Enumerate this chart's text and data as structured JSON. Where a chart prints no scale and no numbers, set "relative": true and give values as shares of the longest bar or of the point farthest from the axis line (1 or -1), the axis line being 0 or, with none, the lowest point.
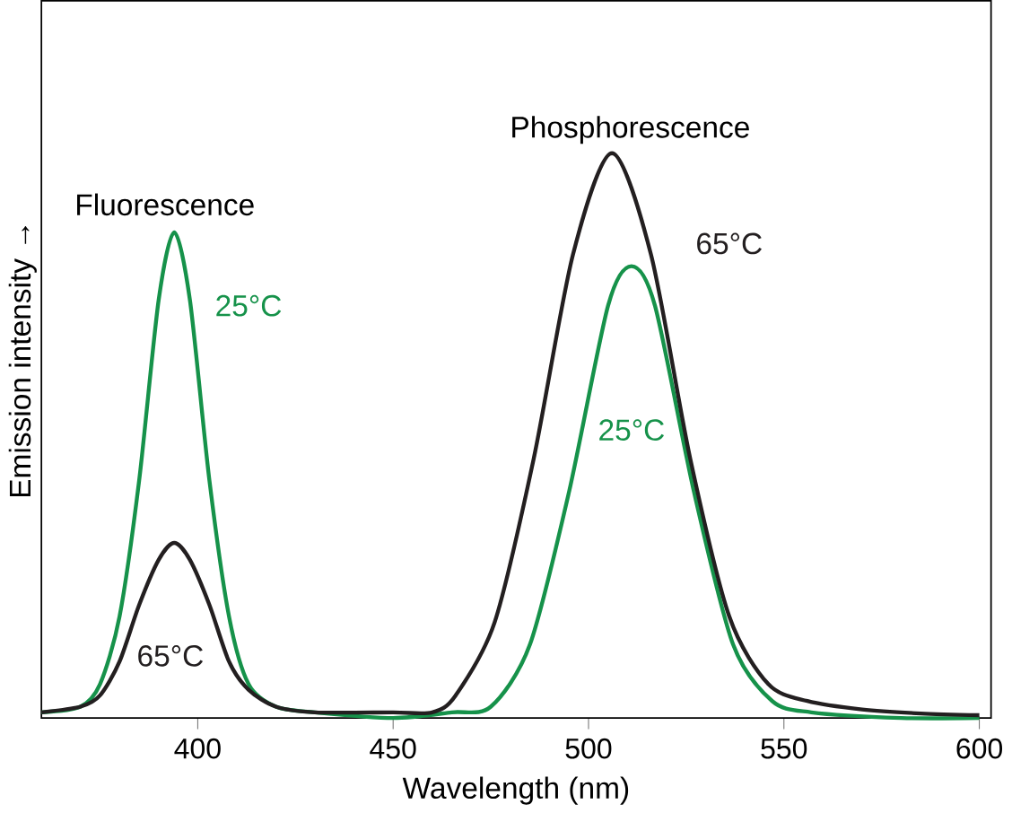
{
  "chart_data": {
    "type": "line",
    "relative": true,
    "xlabel": "Wavelength (nm)",
    "ylabel": "Emission intensity →",
    "xlim": [
      360,
      603
    ],
    "xticks": [
      400,
      450,
      500,
      550,
      600
    ],
    "grid": false,
    "marker": "none",
    "line_style": "solid",
    "annotations": [
      "Fluorescence",
      "Phosphorescence"
    ],
    "series": [
      {
        "name": "25°C",
        "color": "#16924a",
        "x": [
          360,
          370,
          375,
          380,
          385,
          390,
          394,
          398,
          403,
          408,
          413,
          420,
          430,
          450,
          465,
          475,
          485,
          495,
          505,
          511,
          517,
          527,
          537,
          547,
          557,
          580,
          600
        ],
        "values": [
          0.01,
          0.02,
          0.06,
          0.18,
          0.42,
          0.74,
          0.86,
          0.74,
          0.42,
          0.18,
          0.06,
          0.02,
          0.01,
          0.0,
          0.01,
          0.02,
          0.13,
          0.4,
          0.73,
          0.8,
          0.73,
          0.4,
          0.13,
          0.03,
          0.01,
          0.0,
          0.0
        ]
      },
      {
        "name": "65°C",
        "color": "#231f20",
        "x": [
          360,
          370,
          375,
          380,
          385,
          390,
          394,
          398,
          403,
          408,
          413,
          420,
          430,
          450,
          460,
          466,
          476,
          486,
          496,
          506,
          516,
          526,
          536,
          546,
          556,
          570,
          585,
          600
        ],
        "values": [
          0.01,
          0.02,
          0.04,
          0.1,
          0.2,
          0.28,
          0.31,
          0.28,
          0.2,
          0.1,
          0.05,
          0.02,
          0.01,
          0.01,
          0.01,
          0.04,
          0.17,
          0.46,
          0.82,
          1.0,
          0.82,
          0.46,
          0.18,
          0.06,
          0.03,
          0.015,
          0.008,
          0.005
        ]
      }
    ]
  }
}
